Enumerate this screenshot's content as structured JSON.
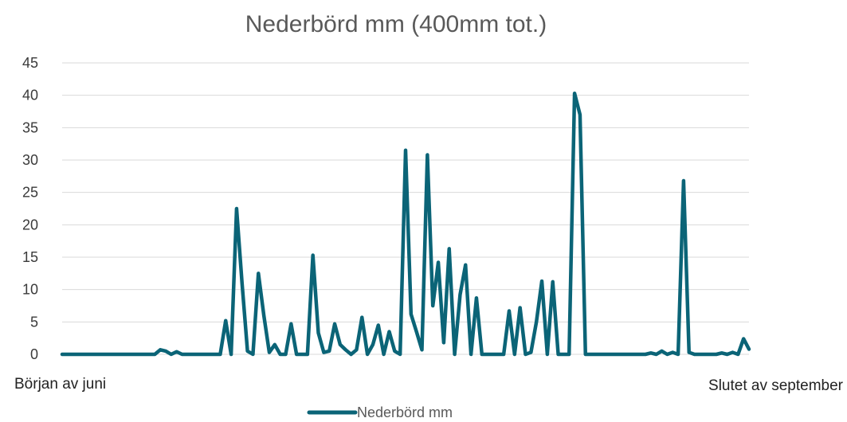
{
  "chart_data": {
    "type": "line",
    "title": "Nederbörd mm (400mm tot.)",
    "xlabel": "",
    "ylabel": "",
    "x_start_label": "Början av juni",
    "x_end_label": "Slutet av september",
    "ylim": [
      0,
      45
    ],
    "yticks": [
      "0",
      "5",
      "10",
      "15",
      "20",
      "25",
      "30",
      "35",
      "40",
      "45"
    ],
    "grid": true,
    "legend_position": "bottom",
    "series": [
      {
        "name": "Nederbörd mm",
        "color": "#0b6477",
        "values": [
          0,
          0,
          0,
          0,
          0,
          0,
          0,
          0,
          0,
          0,
          0,
          0,
          0,
          0,
          0,
          0,
          0,
          0,
          0.7,
          0.5,
          0,
          0.4,
          0,
          0,
          0,
          0,
          0,
          0,
          0,
          0,
          5.2,
          0,
          22.5,
          11,
          0.5,
          0,
          12.5,
          6,
          0.3,
          1.5,
          0,
          0,
          4.7,
          0,
          0,
          0,
          15.3,
          3.3,
          0.3,
          0.5,
          4.7,
          1.5,
          0.7,
          0,
          0.7,
          5.7,
          0,
          1.5,
          4.5,
          0,
          3.5,
          0.5,
          0,
          31.5,
          6.2,
          3.5,
          0.7,
          30.8,
          7.5,
          14.2,
          1.8,
          16.3,
          0,
          9.2,
          13.8,
          0,
          8.7,
          0,
          0,
          0,
          0,
          0,
          6.7,
          0,
          7.2,
          0,
          0.3,
          5,
          11.3,
          0,
          11.2,
          0,
          0,
          0,
          40.3,
          37,
          0,
          0,
          0,
          0,
          0,
          0,
          0,
          0,
          0,
          0,
          0,
          0,
          0.2,
          0,
          0.5,
          0,
          0.3,
          0,
          26.8,
          0.3,
          0,
          0,
          0,
          0,
          0,
          0.2,
          0,
          0.3,
          0,
          2.4,
          0.8
        ]
      }
    ]
  }
}
